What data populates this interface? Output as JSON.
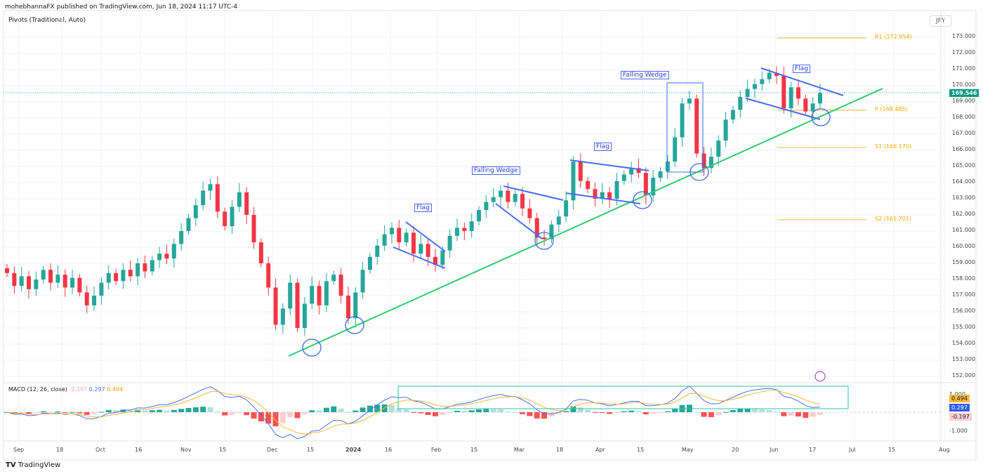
{
  "header": {
    "published": "mohebhannaFX published on TradingView.com, Jun 18, 2024 11:17 UTC-4",
    "indicator": "Pivots (Traditional, Auto)",
    "currency": "JPY"
  },
  "footer": {
    "brand": "TradingView"
  },
  "colors": {
    "up": "#26a69a",
    "down": "#f23645",
    "trend": "#2ecc71",
    "pattern": "#4a6cf7",
    "pivot": "#f6b73c",
    "macd": "#4a6cf7",
    "signal": "#f6b73c"
  },
  "chart_data": [
    {
      "type": "candlestick",
      "title": "",
      "y_axis": {
        "min": 152,
        "max": 173,
        "ticks": [
          "173.000",
          "172.000",
          "171.000",
          "170.000",
          "169.000",
          "168.000",
          "167.000",
          "166.000",
          "165.000",
          "164.000",
          "163.000",
          "162.000",
          "161.000",
          "160.000",
          "159.000",
          "158.000",
          "157.000",
          "156.000",
          "155.000",
          "154.000",
          "153.000",
          "152.000"
        ]
      },
      "x_ticks": [
        "Sep",
        "18",
        "Oct",
        "16",
        "Nov",
        "15",
        "Dec",
        "15",
        "2024",
        "16",
        "Feb",
        "15",
        "Mar",
        "18",
        "Apr",
        "15",
        "May",
        "20",
        "Jun",
        "17",
        "Jul",
        "15",
        "Aug"
      ],
      "last_price": "169.546",
      "closes": [
        158.4,
        157.6,
        158.2,
        157.4,
        158.0,
        158.6,
        157.8,
        158.3,
        157.5,
        158.1,
        157.2,
        156.4,
        157.0,
        157.8,
        158.4,
        157.9,
        158.6,
        158.2,
        159.0,
        158.5,
        159.2,
        159.6,
        159.3,
        160.2,
        161.0,
        161.8,
        162.6,
        163.5,
        163.9,
        162.2,
        161.3,
        162.5,
        163.4,
        162.0,
        160.3,
        159.0,
        157.5,
        155.2,
        156.2,
        157.8,
        155.0,
        156.5,
        157.6,
        156.4,
        157.9,
        158.3,
        157.0,
        155.6,
        157.2,
        158.6,
        159.4,
        160.1,
        160.8,
        161.2,
        160.3,
        160.9,
        159.6,
        160.2,
        159.4,
        158.9,
        159.8,
        160.7,
        161.2,
        161.0,
        161.6,
        162.3,
        162.8,
        163.1,
        163.5,
        162.8,
        163.3,
        162.4,
        161.8,
        160.6,
        160.5,
        161.4,
        161.9,
        162.9,
        165.3,
        164.1,
        163.6,
        163.0,
        163.4,
        163.0,
        164.1,
        164.5,
        164.9,
        164.6,
        163.2,
        164.3,
        164.7,
        165.3,
        166.8,
        168.9,
        169.2,
        165.8,
        164.9,
        165.6,
        166.6,
        167.9,
        168.5,
        169.3,
        169.8,
        170.1,
        170.4,
        170.8,
        170.6,
        168.6,
        169.9,
        169.2,
        168.4,
        168.9,
        169.546
      ],
      "pivots": [
        {
          "label": "R1 (172.954)",
          "value": 172.954
        },
        {
          "label": "P (168.485)",
          "value": 168.485
        },
        {
          "label": "S1 (166.170)",
          "value": 166.17
        },
        {
          "label": "S2 (161.701)",
          "value": 161.701
        }
      ],
      "annotations": [
        "Flag",
        "Falling Wedge",
        "Flag",
        "Falling Wedge",
        "Flag"
      ]
    },
    {
      "type": "macd",
      "title": "MACD (12, 26, close)",
      "histogram": "-0.197",
      "macd": "0.297",
      "signal": "0.494",
      "y_ticks": [
        "1.000",
        "-1.000"
      ]
    }
  ]
}
